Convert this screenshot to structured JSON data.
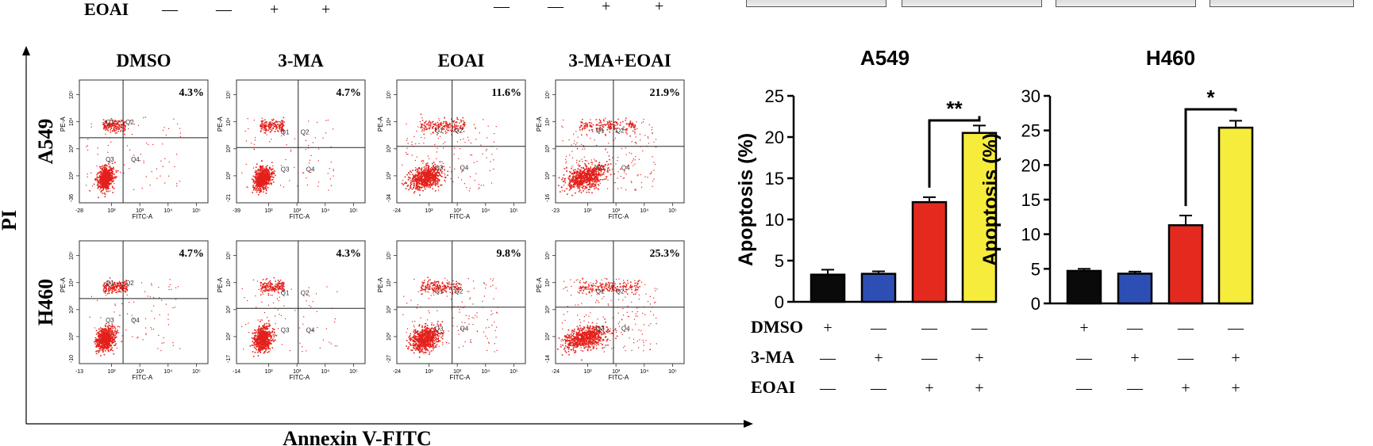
{
  "top_strip": {
    "eoai_label": "EOAI",
    "left_signs": [
      "—",
      "—",
      "+",
      "+"
    ],
    "mid_signs": [
      "—",
      "—",
      "+",
      "+"
    ]
  },
  "flow": {
    "col_titles": [
      "DMSO",
      "3-MA",
      "EOAI",
      "3-MA+EOAI"
    ],
    "row_labels": [
      "A549",
      "H460"
    ],
    "y_axis_label": "PI",
    "x_axis_label": "Annexin V-FITC",
    "percents": [
      [
        "4.3%",
        "4.7%",
        "11.6%",
        "21.9%"
      ],
      [
        "4.7%",
        "4.3%",
        "9.8%",
        "25.3%"
      ]
    ],
    "quadrants": [
      "Q1",
      "Q2",
      "Q3",
      "Q4"
    ],
    "xaxis_title": "FITC-A",
    "yaxis_title": "PE-A",
    "x_min_labels": [
      [
        "-28",
        "-39",
        "-24",
        "-23"
      ],
      [
        "-13",
        "-14",
        "-24",
        "-24"
      ]
    ],
    "y_min_labels": [
      [
        "-36",
        "-21",
        "-34",
        "-16"
      ],
      [
        "-10",
        "-17",
        "-27",
        "-14"
      ]
    ],
    "tick_labels": [
      "10²",
      "10³",
      "10⁴",
      "10⁵"
    ]
  },
  "colors": {
    "dot": "#e3201b",
    "bar_dmso": "#0a0a0a",
    "bar_3ma": "#2d4fb5",
    "bar_eoai": "#e42a1f",
    "bar_combo": "#f6ec3c"
  },
  "chart_data": [
    {
      "type": "bar",
      "title": "A549",
      "ylabel": "Apoptosis (%)",
      "categories": [
        "DMSO",
        "3-MA",
        "EOAI",
        "3-MA+EOAI"
      ],
      "values": [
        3.3,
        3.4,
        12.1,
        20.5
      ],
      "errors": [
        0.6,
        0.3,
        0.6,
        0.9
      ],
      "ylim": [
        0,
        25
      ],
      "yticks": [
        0,
        5,
        10,
        15,
        20,
        25
      ],
      "significance": "**",
      "treatment_rows": [
        {
          "label": "DMSO",
          "signs": [
            "+",
            "—",
            "—",
            "—"
          ]
        },
        {
          "label": "3-MA",
          "signs": [
            "—",
            "+",
            "—",
            "+"
          ]
        },
        {
          "label": "EOAI",
          "signs": [
            "—",
            "—",
            "+",
            "+"
          ]
        }
      ]
    },
    {
      "type": "bar",
      "title": "H460",
      "ylabel": "Apoptosis (%)",
      "categories": [
        "DMSO",
        "3-MA",
        "EOAI",
        "3-MA+EOAI"
      ],
      "values": [
        4.7,
        4.3,
        11.3,
        25.4
      ],
      "errors": [
        0.3,
        0.3,
        1.4,
        1.0
      ],
      "ylim": [
        0,
        30
      ],
      "yticks": [
        0,
        5,
        10,
        15,
        20,
        25,
        30
      ],
      "significance": "*",
      "treatment_rows": [
        {
          "signs": [
            "+",
            "—",
            "—",
            "—"
          ]
        },
        {
          "signs": [
            "—",
            "+",
            "—",
            "+"
          ]
        },
        {
          "signs": [
            "—",
            "—",
            "+",
            "+"
          ]
        }
      ]
    }
  ]
}
